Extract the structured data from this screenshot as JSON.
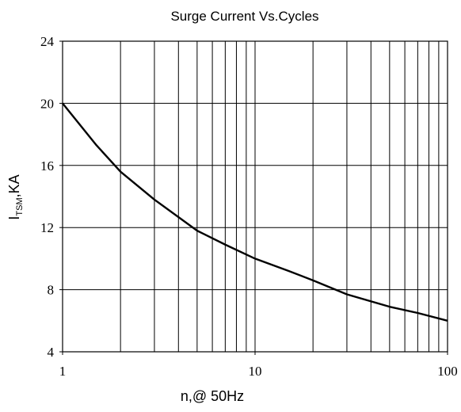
{
  "chart_data": {
    "type": "line",
    "title": "Surge Current Vs.Cycles",
    "xlabel": "n,@ 50Hz",
    "ylabel": {
      "main": "I",
      "sub": "TSM",
      "suffix": ",KA"
    },
    "x_scale": "log",
    "xlim": [
      1,
      100
    ],
    "ylim": [
      4,
      24
    ],
    "x_ticks": [
      {
        "value": 1,
        "label": "1"
      },
      {
        "value": 10,
        "label": "10"
      },
      {
        "value": 100,
        "label": "100"
      }
    ],
    "y_ticks": [
      {
        "value": 4,
        "label": "4"
      },
      {
        "value": 8,
        "label": "8"
      },
      {
        "value": 12,
        "label": "12"
      },
      {
        "value": 16,
        "label": "16"
      },
      {
        "value": 20,
        "label": "20"
      },
      {
        "value": 24,
        "label": "24"
      }
    ],
    "grid": true,
    "series": [
      {
        "color": "#000000",
        "x": [
          1,
          1.5,
          2,
          3,
          5,
          7,
          10,
          15,
          20,
          30,
          50,
          70,
          100
        ],
        "y": [
          20,
          17.3,
          15.6,
          13.8,
          11.8,
          10.9,
          10.0,
          9.2,
          8.6,
          7.7,
          6.9,
          6.5,
          6.0
        ]
      }
    ]
  }
}
